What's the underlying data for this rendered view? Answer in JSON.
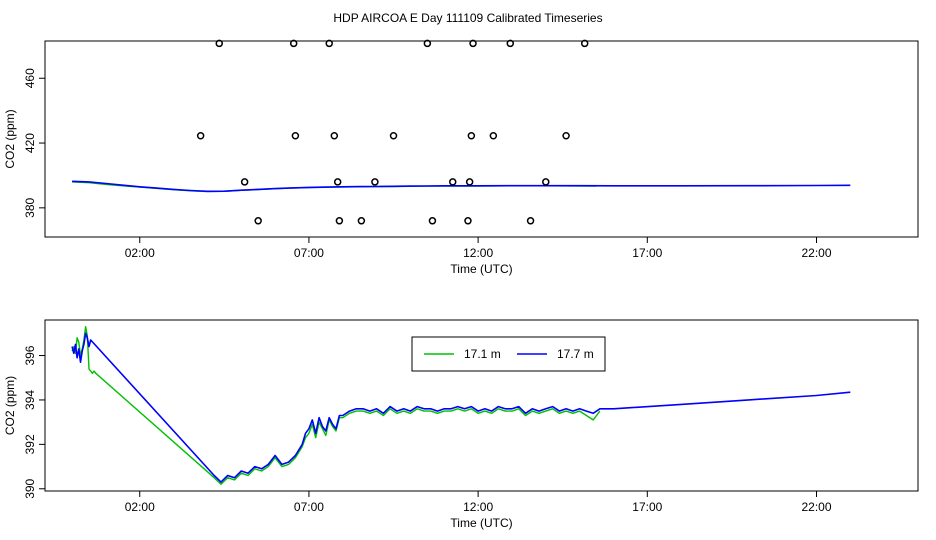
{
  "title": "HDP AIRCOA E  Day 111109  Calibrated Timeseries",
  "chart_data": [
    {
      "type": "scatter",
      "xlabel": "Time (UTC)",
      "ylabel": "CO2 (ppm)",
      "xlim": [
        -0.8,
        25.0
      ],
      "ylim": [
        362,
        483
      ],
      "x_ticks": [
        2,
        7,
        12,
        17,
        22
      ],
      "x_tick_labels": [
        "02:00",
        "07:00",
        "12:00",
        "17:00",
        "22:00"
      ],
      "y_ticks": [
        380,
        420,
        460
      ],
      "y_tick_labels": [
        "380",
        "420",
        "460"
      ],
      "grid": false,
      "points_outlier": [
        [
          3.8,
          424.5
        ],
        [
          5.5,
          372
        ],
        [
          4.35,
          481.5
        ],
        [
          5.1,
          396
        ],
        [
          6.6,
          424.5
        ],
        [
          6.55,
          481.5
        ],
        [
          7.6,
          481.5
        ],
        [
          7.75,
          424.5
        ],
        [
          7.85,
          396
        ],
        [
          7.9,
          372
        ],
        [
          8.55,
          372
        ],
        [
          8.95,
          396
        ],
        [
          9.5,
          424.5
        ],
        [
          10.5,
          481.5
        ],
        [
          10.65,
          372
        ],
        [
          11.25,
          396
        ],
        [
          11.8,
          424.5
        ],
        [
          11.75,
          396
        ],
        [
          11.85,
          481.5
        ],
        [
          11.7,
          372
        ],
        [
          12.45,
          424.5
        ],
        [
          12.95,
          481.5
        ],
        [
          13.55,
          372
        ],
        [
          14.0,
          396
        ],
        [
          14.6,
          424.5
        ],
        [
          15.15,
          481.5
        ]
      ],
      "series": [
        {
          "name": "",
          "color": "#00c000",
          "x": [
            0,
            0.5,
            1.0,
            1.5,
            2.0,
            2.5,
            3.0,
            3.5,
            4.0,
            4.5,
            5.0,
            5.5,
            6.0,
            6.5,
            7.0,
            7.5,
            8.0,
            8.5,
            9.0,
            9.5,
            10.0,
            10.5,
            11.0,
            12.0,
            13.0,
            14.0,
            15.2,
            15.5
          ],
          "y": [
            396.0,
            395.5,
            394.5,
            393.6,
            392.8,
            392.0,
            391.2,
            390.5,
            390.0,
            390.2,
            390.8,
            391.3,
            391.8,
            392.2,
            392.5,
            392.7,
            392.9,
            393.0,
            393.1,
            393.2,
            393.3,
            393.4,
            393.5,
            393.5,
            393.6,
            393.6,
            393.5,
            393.4
          ]
        },
        {
          "name": "",
          "color": "#0000ff",
          "x": [
            0,
            0.5,
            1.0,
            1.5,
            2.0,
            2.5,
            3.0,
            3.5,
            4.0,
            4.5,
            5.0,
            5.5,
            6.0,
            6.5,
            7.0,
            7.5,
            8.0,
            8.5,
            9.0,
            9.5,
            10.0,
            10.5,
            11.0,
            12.0,
            13.0,
            14.0,
            15.0,
            16.0,
            18.0,
            20.0,
            22.0,
            23.0
          ],
          "y": [
            396.4,
            396.0,
            395.0,
            394.0,
            393.0,
            392.2,
            391.4,
            390.7,
            390.2,
            390.3,
            390.9,
            391.4,
            391.9,
            392.3,
            392.6,
            392.8,
            393.0,
            393.1,
            393.2,
            393.3,
            393.4,
            393.5,
            393.6,
            393.6,
            393.7,
            393.7,
            393.7,
            393.6,
            393.6,
            393.7,
            393.8,
            393.9
          ]
        }
      ]
    },
    {
      "type": "line",
      "xlabel": "Time (UTC)",
      "ylabel": "CO2 (ppm)",
      "xlim": [
        -0.8,
        25.0
      ],
      "ylim": [
        389.9,
        397.6
      ],
      "x_ticks": [
        2,
        7,
        12,
        17,
        22
      ],
      "x_tick_labels": [
        "02:00",
        "07:00",
        "12:00",
        "17:00",
        "22:00"
      ],
      "y_ticks": [
        390,
        392,
        394,
        396
      ],
      "y_tick_labels": [
        "390",
        "392",
        "394",
        "396"
      ],
      "grid": false,
      "legend": {
        "placement": "top-center",
        "entries": [
          "17.1 m",
          "17.7 m"
        ]
      },
      "series": [
        {
          "name": "17.1 m",
          "color": "#00c000",
          "x": [
            0.0,
            0.05,
            0.1,
            0.15,
            0.2,
            0.25,
            0.3,
            0.35,
            0.4,
            0.45,
            0.5,
            0.55,
            0.6,
            0.65,
            0.7,
            4.2,
            4.4,
            4.6,
            4.8,
            5.0,
            5.2,
            5.4,
            5.6,
            5.8,
            6.0,
            6.2,
            6.4,
            6.6,
            6.8,
            6.9,
            7.0,
            7.1,
            7.2,
            7.3,
            7.4,
            7.5,
            7.6,
            7.7,
            7.8,
            7.9,
            8.0,
            8.2,
            8.4,
            8.6,
            8.8,
            9.0,
            9.2,
            9.4,
            9.6,
            9.8,
            10.0,
            10.2,
            10.4,
            10.6,
            10.8,
            11.0,
            11.2,
            11.4,
            11.6,
            11.8,
            12.0,
            12.2,
            12.4,
            12.6,
            12.8,
            13.0,
            13.2,
            13.4,
            13.6,
            13.8,
            14.0,
            14.2,
            14.4,
            14.6,
            14.8,
            15.0,
            15.2,
            15.4,
            15.6
          ],
          "y": [
            396.2,
            396.4,
            396.1,
            396.8,
            396.6,
            396.0,
            396.3,
            396.7,
            397.3,
            396.9,
            395.4,
            395.3,
            395.2,
            395.3,
            395.2,
            390.5,
            390.2,
            390.5,
            390.4,
            390.7,
            390.6,
            390.9,
            390.8,
            391.0,
            391.4,
            391.0,
            391.1,
            391.4,
            391.9,
            392.3,
            392.5,
            392.9,
            392.3,
            393.0,
            392.7,
            392.4,
            393.1,
            392.8,
            392.6,
            393.2,
            393.2,
            393.4,
            393.5,
            393.5,
            393.4,
            393.5,
            393.3,
            393.6,
            393.4,
            393.5,
            393.4,
            393.6,
            393.5,
            393.5,
            393.4,
            393.5,
            393.5,
            393.6,
            393.5,
            393.6,
            393.4,
            393.5,
            393.4,
            393.6,
            393.5,
            393.5,
            393.6,
            393.3,
            393.5,
            393.4,
            393.5,
            393.6,
            393.4,
            393.5,
            393.4,
            393.5,
            393.3,
            393.1,
            393.5
          ]
        },
        {
          "name": "17.7 m",
          "color": "#0000ff",
          "x": [
            0.0,
            0.05,
            0.1,
            0.15,
            0.2,
            0.25,
            0.3,
            0.35,
            0.4,
            0.45,
            0.5,
            0.55,
            4.2,
            4.4,
            4.6,
            4.8,
            5.0,
            5.2,
            5.4,
            5.6,
            5.8,
            6.0,
            6.2,
            6.4,
            6.6,
            6.8,
            6.9,
            7.0,
            7.1,
            7.2,
            7.3,
            7.4,
            7.5,
            7.6,
            7.7,
            7.8,
            7.9,
            8.0,
            8.2,
            8.4,
            8.6,
            8.8,
            9.0,
            9.2,
            9.4,
            9.6,
            9.8,
            10.0,
            10.2,
            10.4,
            10.6,
            10.8,
            11.0,
            11.2,
            11.4,
            11.6,
            11.8,
            12.0,
            12.2,
            12.4,
            12.6,
            12.8,
            13.0,
            13.2,
            13.4,
            13.6,
            13.8,
            14.0,
            14.2,
            14.4,
            14.6,
            14.8,
            15.0,
            15.2,
            15.4,
            15.6,
            16.0,
            18.0,
            20.0,
            22.0,
            23.0
          ],
          "y": [
            396.4,
            396.1,
            396.5,
            395.9,
            396.3,
            395.7,
            396.2,
            396.5,
            397.0,
            396.8,
            396.4,
            396.7,
            390.6,
            390.3,
            390.6,
            390.5,
            390.8,
            390.7,
            391.0,
            390.9,
            391.1,
            391.5,
            391.1,
            391.2,
            391.5,
            392.0,
            392.5,
            392.7,
            393.1,
            392.5,
            393.2,
            392.8,
            392.6,
            393.2,
            392.9,
            392.7,
            393.3,
            393.3,
            393.5,
            393.6,
            393.6,
            393.5,
            393.6,
            393.4,
            393.7,
            393.5,
            393.6,
            393.5,
            393.7,
            393.6,
            393.6,
            393.5,
            393.6,
            393.6,
            393.7,
            393.6,
            393.7,
            393.5,
            393.6,
            393.5,
            393.7,
            393.6,
            393.6,
            393.7,
            393.4,
            393.6,
            393.5,
            393.6,
            393.7,
            393.5,
            393.6,
            393.5,
            393.6,
            393.5,
            393.4,
            393.6,
            393.6,
            393.8,
            394.0,
            394.2,
            394.35
          ]
        }
      ]
    }
  ]
}
